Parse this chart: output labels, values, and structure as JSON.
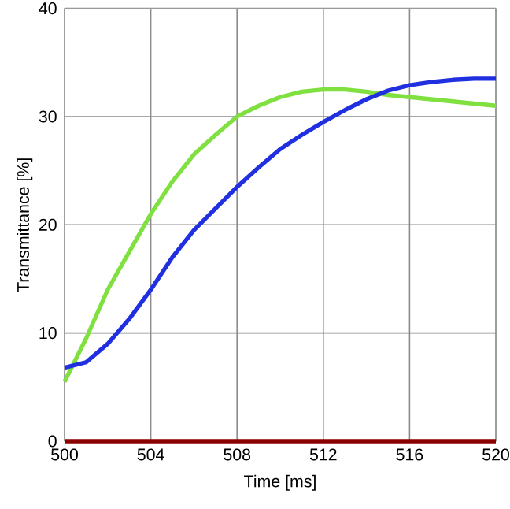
{
  "chart_data": {
    "type": "line",
    "xlabel": "Time [ms]",
    "ylabel": "Transmittance [%]",
    "xlim": [
      500,
      520
    ],
    "ylim": [
      0,
      40
    ],
    "xticks": [
      500,
      504,
      508,
      512,
      516,
      520
    ],
    "yticks": [
      0,
      10,
      20,
      30,
      40
    ],
    "grid": true,
    "marker": "none",
    "line_style": "solid",
    "series": [
      {
        "color": "#80e040",
        "x": [
          500,
          501,
          502,
          503,
          504,
          505,
          506,
          507,
          508,
          509,
          510,
          511,
          512,
          513,
          514,
          515,
          516,
          517,
          518,
          519,
          520
        ],
        "values": [
          5.5,
          9.5,
          14,
          17.5,
          21,
          24,
          26.5,
          28.3,
          30,
          31,
          31.8,
          32.3,
          32.5,
          32.5,
          32.3,
          32,
          31.8,
          31.6,
          31.4,
          31.2,
          31
        ]
      },
      {
        "color": "#2030e0",
        "x": [
          500,
          501,
          502,
          503,
          504,
          505,
          506,
          507,
          508,
          509,
          510,
          511,
          512,
          513,
          514,
          515,
          516,
          517,
          518,
          519,
          520
        ],
        "values": [
          6.8,
          7.3,
          9,
          11.3,
          14,
          17,
          19.5,
          21.5,
          23.5,
          25.3,
          27,
          28.3,
          29.5,
          30.6,
          31.6,
          32.4,
          32.9,
          33.2,
          33.4,
          33.5,
          33.5
        ]
      },
      {
        "color": "#8b0000",
        "x": [
          500,
          520
        ],
        "values": [
          0,
          0
        ]
      }
    ]
  }
}
